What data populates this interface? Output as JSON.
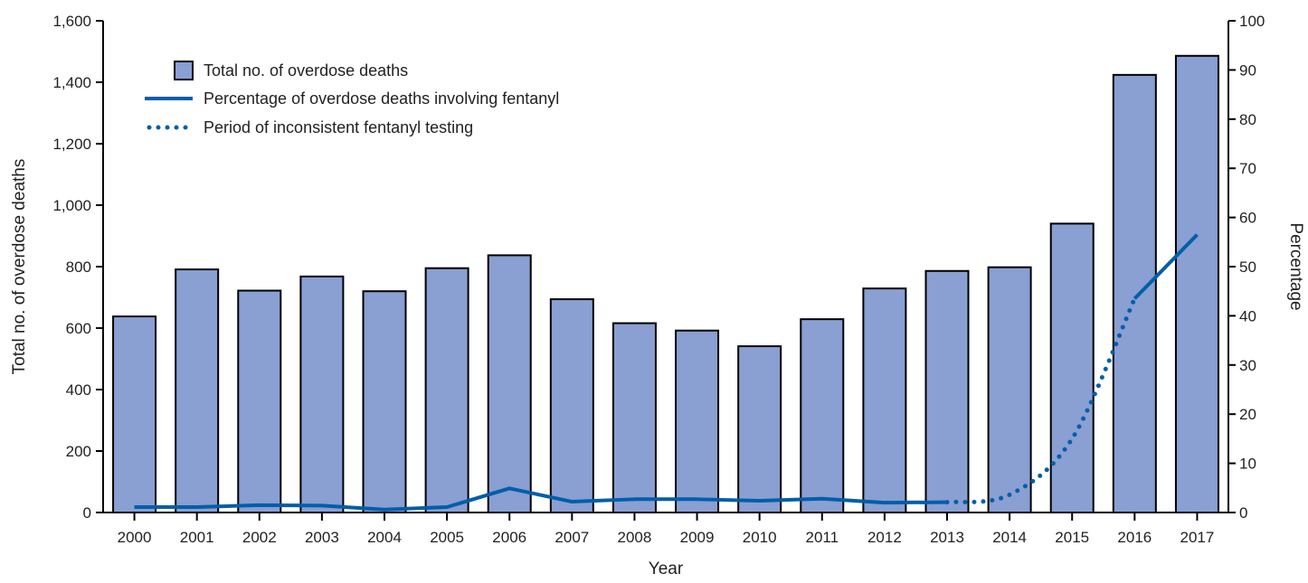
{
  "colors": {
    "bar_fill": "#8a9fd2",
    "bar_stroke": "#000000",
    "line": "#005eaa",
    "axis": "#000000",
    "text": "#231f20"
  },
  "chart_data": {
    "type": "bar",
    "categories": [
      "2000",
      "2001",
      "2002",
      "2003",
      "2004",
      "2005",
      "2006",
      "2007",
      "2008",
      "2009",
      "2010",
      "2011",
      "2012",
      "2013",
      "2014",
      "2015",
      "2016",
      "2017"
    ],
    "series": [
      {
        "name": "Total no. of overdose deaths",
        "axis": "left",
        "type": "bar",
        "values": [
          638,
          791,
          722,
          768,
          720,
          795,
          837,
          694,
          616,
          592,
          541,
          629,
          729,
          786,
          798,
          940,
          1424,
          1486
        ]
      },
      {
        "name": "Percentage of overdose deaths involving fentanyl",
        "axis": "right",
        "type": "line",
        "style": "solid",
        "values": [
          1.1,
          1.1,
          1.5,
          1.4,
          0.6,
          1.1,
          4.9,
          2.2,
          2.7,
          2.7,
          2.4,
          2.8,
          2.0,
          2.1,
          3.6,
          15.0,
          43.5,
          56.5
        ]
      },
      {
        "name": "Period of inconsistent fentanyl testing",
        "axis": "right",
        "type": "line",
        "style": "dotted",
        "x_range": [
          "2013",
          "2016"
        ]
      }
    ],
    "xlabel": "Year",
    "ylabel": "Total no. of overdose deaths",
    "y2label": "Percentage",
    "ylim": [
      0,
      1600
    ],
    "y2lim": [
      0,
      100
    ],
    "yticks": [
      0,
      200,
      400,
      600,
      800,
      1000,
      1200,
      1400,
      1600
    ],
    "ytick_labels": [
      "0",
      "200",
      "400",
      "600",
      "800",
      "1,000",
      "1,200",
      "1,400",
      "1,600"
    ],
    "y2ticks": [
      0,
      10,
      20,
      30,
      40,
      50,
      60,
      70,
      80,
      90,
      100
    ],
    "grid": false,
    "legend_position": "top-left"
  }
}
